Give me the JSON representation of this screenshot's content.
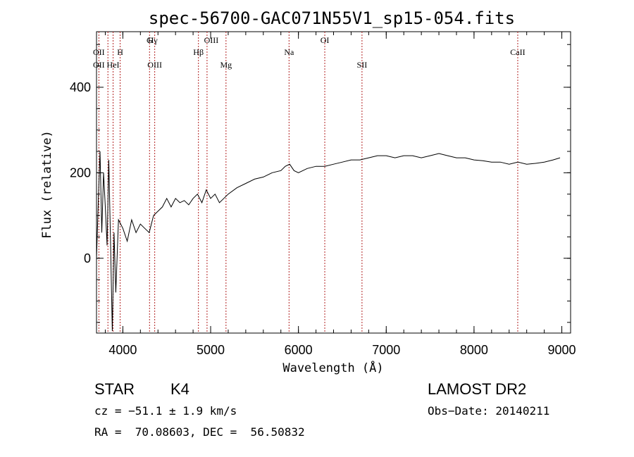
{
  "chart_data": {
    "type": "line",
    "title": "spec-56700-GAC071N55V1_sp15-054.fits",
    "xlabel": "Wavelength (Å)",
    "ylabel": "Flux (relative)",
    "xlim": [
      3700,
      9100
    ],
    "ylim": [
      -175,
      530
    ],
    "xticks": [
      "4000",
      "5000",
      "6000",
      "7000",
      "8000",
      "9000"
    ],
    "yticks": [
      "0",
      "200",
      "400"
    ],
    "series": [
      {
        "x": [
          3700,
          3720,
          3740,
          3760,
          3780,
          3800,
          3820,
          3840,
          3860,
          3880,
          3900,
          3920,
          3950,
          4000,
          4050,
          4100,
          4150,
          4200,
          4250,
          4300,
          4350,
          4400,
          4450,
          4500,
          4550,
          4600,
          4650,
          4700,
          4750,
          4800,
          4850,
          4900,
          4950,
          5000,
          5050,
          5100,
          5150,
          5200,
          5300,
          5400,
          5500,
          5600,
          5700,
          5800,
          5850,
          5900,
          5950,
          6000,
          6100,
          6200,
          6300,
          6400,
          6500,
          6600,
          6700,
          6800,
          6900,
          7000,
          7100,
          7200,
          7300,
          7400,
          7500,
          7600,
          7700,
          7800,
          7900,
          8000,
          8100,
          8200,
          8300,
          8400,
          8500,
          8600,
          8700,
          8800,
          8900,
          8980
        ],
        "y": [
          0,
          130,
          250,
          60,
          200,
          120,
          30,
          230,
          40,
          -170,
          60,
          -80,
          90,
          70,
          40,
          90,
          60,
          80,
          70,
          60,
          100,
          110,
          120,
          140,
          120,
          140,
          130,
          135,
          125,
          140,
          150,
          130,
          160,
          140,
          150,
          130,
          140,
          150,
          165,
          175,
          185,
          190,
          200,
          205,
          215,
          220,
          205,
          200,
          210,
          215,
          215,
          220,
          225,
          230,
          230,
          235,
          240,
          240,
          235,
          240,
          240,
          235,
          240,
          245,
          240,
          235,
          235,
          230,
          228,
          225,
          225,
          220,
          225,
          220,
          222,
          225,
          230,
          235
        ]
      }
    ]
  },
  "lines_top": [
    {
      "label": "Hγ",
      "x": 4340
    },
    {
      "label": "G",
      "x": 4304
    },
    {
      "label": "OIII",
      "x": 5007
    },
    {
      "label": "OI",
      "x": 6300
    }
  ],
  "lines_mid": [
    {
      "label": "OII",
      "x": 3727
    },
    {
      "label": "H",
      "x": 3969
    },
    {
      "label": "Hβ",
      "x": 4861
    },
    {
      "label": "Na",
      "x": 5893
    },
    {
      "label": "CaII",
      "x": 8498
    }
  ],
  "lines_low": [
    {
      "label": "OII",
      "x": 3727
    },
    {
      "label": "HeI",
      "x": 3889
    },
    {
      "label": "OIII",
      "x": 4363
    },
    {
      "label": "Mg",
      "x": 5175
    },
    {
      "label": "SII",
      "x": 6724
    }
  ],
  "marker_lines": [
    3727,
    3830,
    3889,
    3969,
    4304,
    4363,
    4861,
    4959,
    5175,
    5893,
    6300,
    6724,
    8498
  ],
  "info": {
    "object_class": "STAR",
    "subclass": "K4",
    "survey": "LAMOST DR2",
    "cz": "cz = −51.1 ± 1.9 km/s",
    "obs_date": "Obs−Date: 20140211",
    "radec": "RA =  70.08603, DEC =  56.50832"
  },
  "colors": {
    "marker": "#b22222",
    "spectrum": "#000000"
  }
}
